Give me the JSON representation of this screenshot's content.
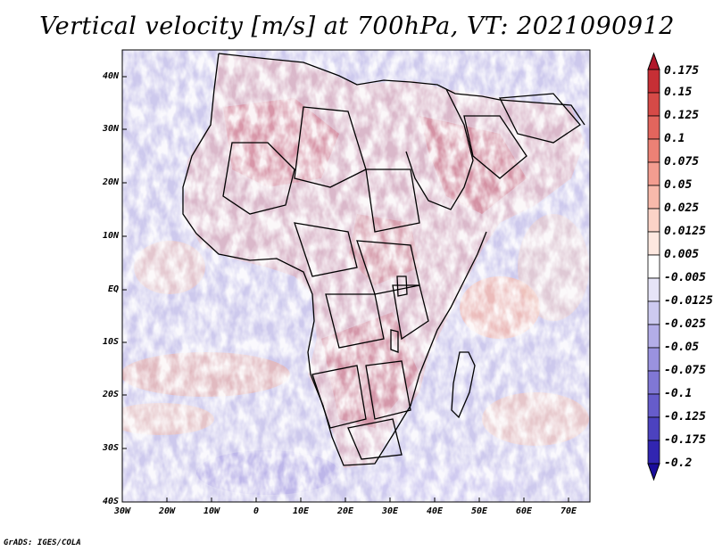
{
  "title": "Vertical velocity [m/s] at 700hPa, VT: 2021090912",
  "credit": "GrADS: IGES/COLA",
  "axes": {
    "lat_labels": [
      "40N",
      "30N",
      "20N",
      "10N",
      "EQ",
      "10S",
      "20S",
      "30S",
      "40S"
    ],
    "lon_labels": [
      "30W",
      "20W",
      "10W",
      "0",
      "10E",
      "20E",
      "30E",
      "40E",
      "50E",
      "60E",
      "70E"
    ]
  },
  "colorbar": {
    "labels": [
      "0.175",
      "0.15",
      "0.125",
      "0.1",
      "0.075",
      "0.05",
      "0.025",
      "0.0125",
      "0.005",
      "-0.005",
      "-0.0125",
      "-0.025",
      "-0.05",
      "-0.075",
      "-0.1",
      "-0.125",
      "-0.175",
      "-0.2"
    ],
    "colors": [
      "#b2182b",
      "#c62f35",
      "#d64a47",
      "#e2655d",
      "#ec8175",
      "#f39d90",
      "#f8b9ab",
      "#fbd3c7",
      "#fde8e0",
      "#ffffff",
      "#e6e4f7",
      "#cdcaf0",
      "#b3ade8",
      "#9a92df",
      "#8077d5",
      "#665ccb",
      "#4c42bf",
      "#3125b1",
      "#1a0d9c"
    ]
  },
  "map_regions": {
    "region": "Africa",
    "field": "vertical velocity"
  }
}
